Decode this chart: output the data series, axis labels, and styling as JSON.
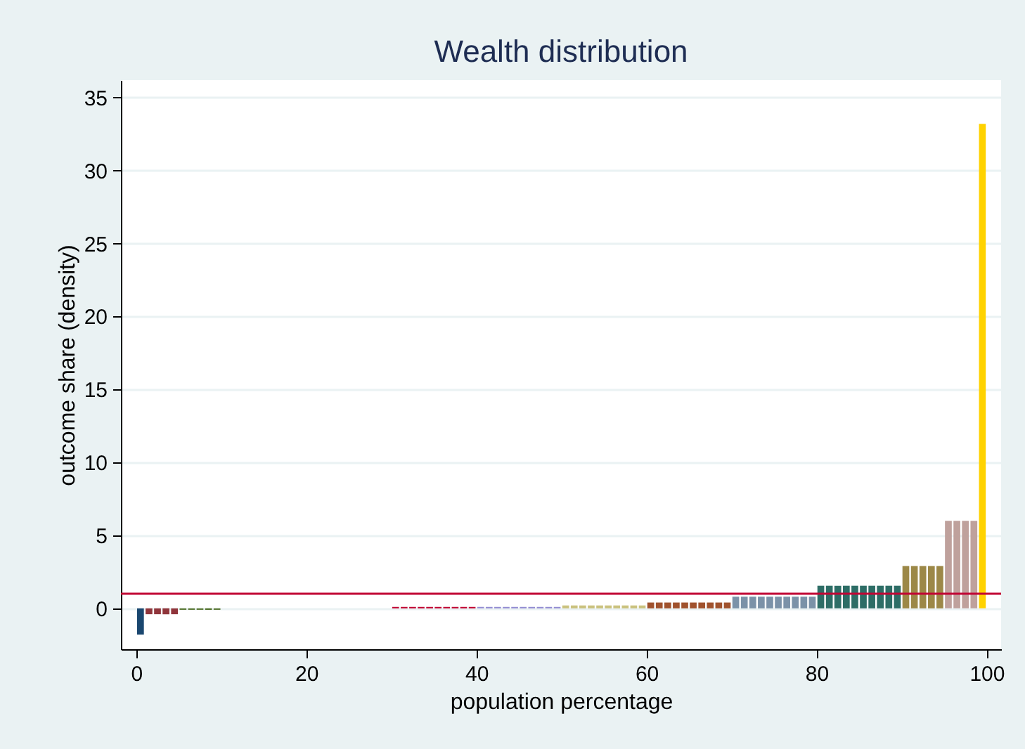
{
  "chart_data": {
    "type": "bar",
    "title": "Wealth distribution",
    "xlabel": "population percentage",
    "ylabel": "outcome share (density)",
    "x": [
      0.5,
      1.5,
      2.5,
      3.5,
      4.5,
      5.5,
      6.5,
      7.5,
      8.5,
      9.5,
      10.5,
      11.5,
      12.5,
      13.5,
      14.5,
      15.5,
      16.5,
      17.5,
      18.5,
      19.5,
      20.5,
      21.5,
      22.5,
      23.5,
      24.5,
      25.5,
      26.5,
      27.5,
      28.5,
      29.5,
      30.5,
      31.5,
      32.5,
      33.5,
      34.5,
      35.5,
      36.5,
      37.5,
      38.5,
      39.5,
      40.5,
      41.5,
      42.5,
      43.5,
      44.5,
      45.5,
      46.5,
      47.5,
      48.5,
      49.5,
      50.5,
      51.5,
      52.5,
      53.5,
      54.5,
      55.5,
      56.5,
      57.5,
      58.5,
      59.5,
      60.5,
      61.5,
      62.5,
      63.5,
      64.5,
      65.5,
      66.5,
      67.5,
      68.5,
      69.5,
      70.5,
      71.5,
      72.5,
      73.5,
      74.5,
      75.5,
      76.5,
      77.5,
      78.5,
      79.5,
      80.5,
      81.5,
      82.5,
      83.5,
      84.5,
      85.5,
      86.5,
      87.5,
      88.5,
      89.5,
      90.5,
      91.5,
      92.5,
      93.5,
      94.5,
      95.5,
      96.5,
      97.5,
      98.5,
      99.5
    ],
    "values": [
      -1.8,
      -0.4,
      -0.4,
      -0.4,
      -0.4,
      -0.1,
      -0.1,
      -0.1,
      -0.1,
      -0.1,
      0,
      0,
      0,
      0,
      0,
      0,
      0,
      0,
      0,
      0,
      0,
      0,
      0,
      0,
      0,
      0,
      0,
      0,
      0,
      0,
      0.1,
      0.1,
      0.1,
      0.1,
      0.1,
      0.1,
      0.1,
      0.1,
      0.1,
      0.1,
      0.1,
      0.1,
      0.1,
      0.1,
      0.1,
      0.1,
      0.1,
      0.1,
      0.1,
      0.1,
      0.2,
      0.2,
      0.2,
      0.2,
      0.2,
      0.2,
      0.2,
      0.2,
      0.2,
      0.2,
      0.4,
      0.4,
      0.4,
      0.4,
      0.4,
      0.4,
      0.4,
      0.4,
      0.4,
      0.4,
      0.8,
      0.8,
      0.8,
      0.8,
      0.8,
      0.8,
      0.8,
      0.8,
      0.8,
      0.8,
      1.55,
      1.55,
      1.55,
      1.55,
      1.55,
      1.55,
      1.55,
      1.55,
      1.55,
      1.55,
      2.9,
      2.9,
      2.9,
      2.9,
      2.9,
      6.0,
      6.0,
      6.0,
      6.0,
      33.2
    ],
    "colors": [
      "#1a476f",
      "#90353b",
      "#90353b",
      "#90353b",
      "#90353b",
      "#55752f",
      "#55752f",
      "#55752f",
      "#55752f",
      "#55752f",
      "#e37e00",
      "#e37e00",
      "#e37e00",
      "#e37e00",
      "#e37e00",
      "#e37e00",
      "#e37e00",
      "#e37e00",
      "#e37e00",
      "#e37e00",
      "#6e8e84",
      "#6e8e84",
      "#6e8e84",
      "#6e8e84",
      "#6e8e84",
      "#6e8e84",
      "#6e8e84",
      "#6e8e84",
      "#6e8e84",
      "#6e8e84",
      "#c10534",
      "#c10534",
      "#c10534",
      "#c10534",
      "#c10534",
      "#c10534",
      "#c10534",
      "#c10534",
      "#c10534",
      "#c10534",
      "#938dd2",
      "#938dd2",
      "#938dd2",
      "#938dd2",
      "#938dd2",
      "#938dd2",
      "#938dd2",
      "#938dd2",
      "#938dd2",
      "#938dd2",
      "#cac27e",
      "#cac27e",
      "#cac27e",
      "#cac27e",
      "#cac27e",
      "#cac27e",
      "#cac27e",
      "#cac27e",
      "#cac27e",
      "#cac27e",
      "#a0522d",
      "#a0522d",
      "#a0522d",
      "#a0522d",
      "#a0522d",
      "#a0522d",
      "#a0522d",
      "#a0522d",
      "#a0522d",
      "#a0522d",
      "#7b92a8",
      "#7b92a8",
      "#7b92a8",
      "#7b92a8",
      "#7b92a8",
      "#7b92a8",
      "#7b92a8",
      "#7b92a8",
      "#7b92a8",
      "#7b92a8",
      "#2d6d66",
      "#2d6d66",
      "#2d6d66",
      "#2d6d66",
      "#2d6d66",
      "#2d6d66",
      "#2d6d66",
      "#2d6d66",
      "#2d6d66",
      "#2d6d66",
      "#9c8847",
      "#9c8847",
      "#9c8847",
      "#9c8847",
      "#9c8847",
      "#bfa19c",
      "#bfa19c",
      "#bfa19c",
      "#bfa19c",
      "#ffd200"
    ],
    "xlim": [
      -1.8,
      101.7
    ],
    "xticks": [
      0,
      20,
      40,
      60,
      80,
      100
    ],
    "ylim": [
      -2.8,
      36.2
    ],
    "yticks": [
      0,
      5,
      10,
      15,
      20,
      25,
      30,
      35
    ],
    "ref_lines": [
      {
        "axis": "y",
        "value": 1,
        "color": "#c10534"
      }
    ],
    "grid": "y"
  }
}
